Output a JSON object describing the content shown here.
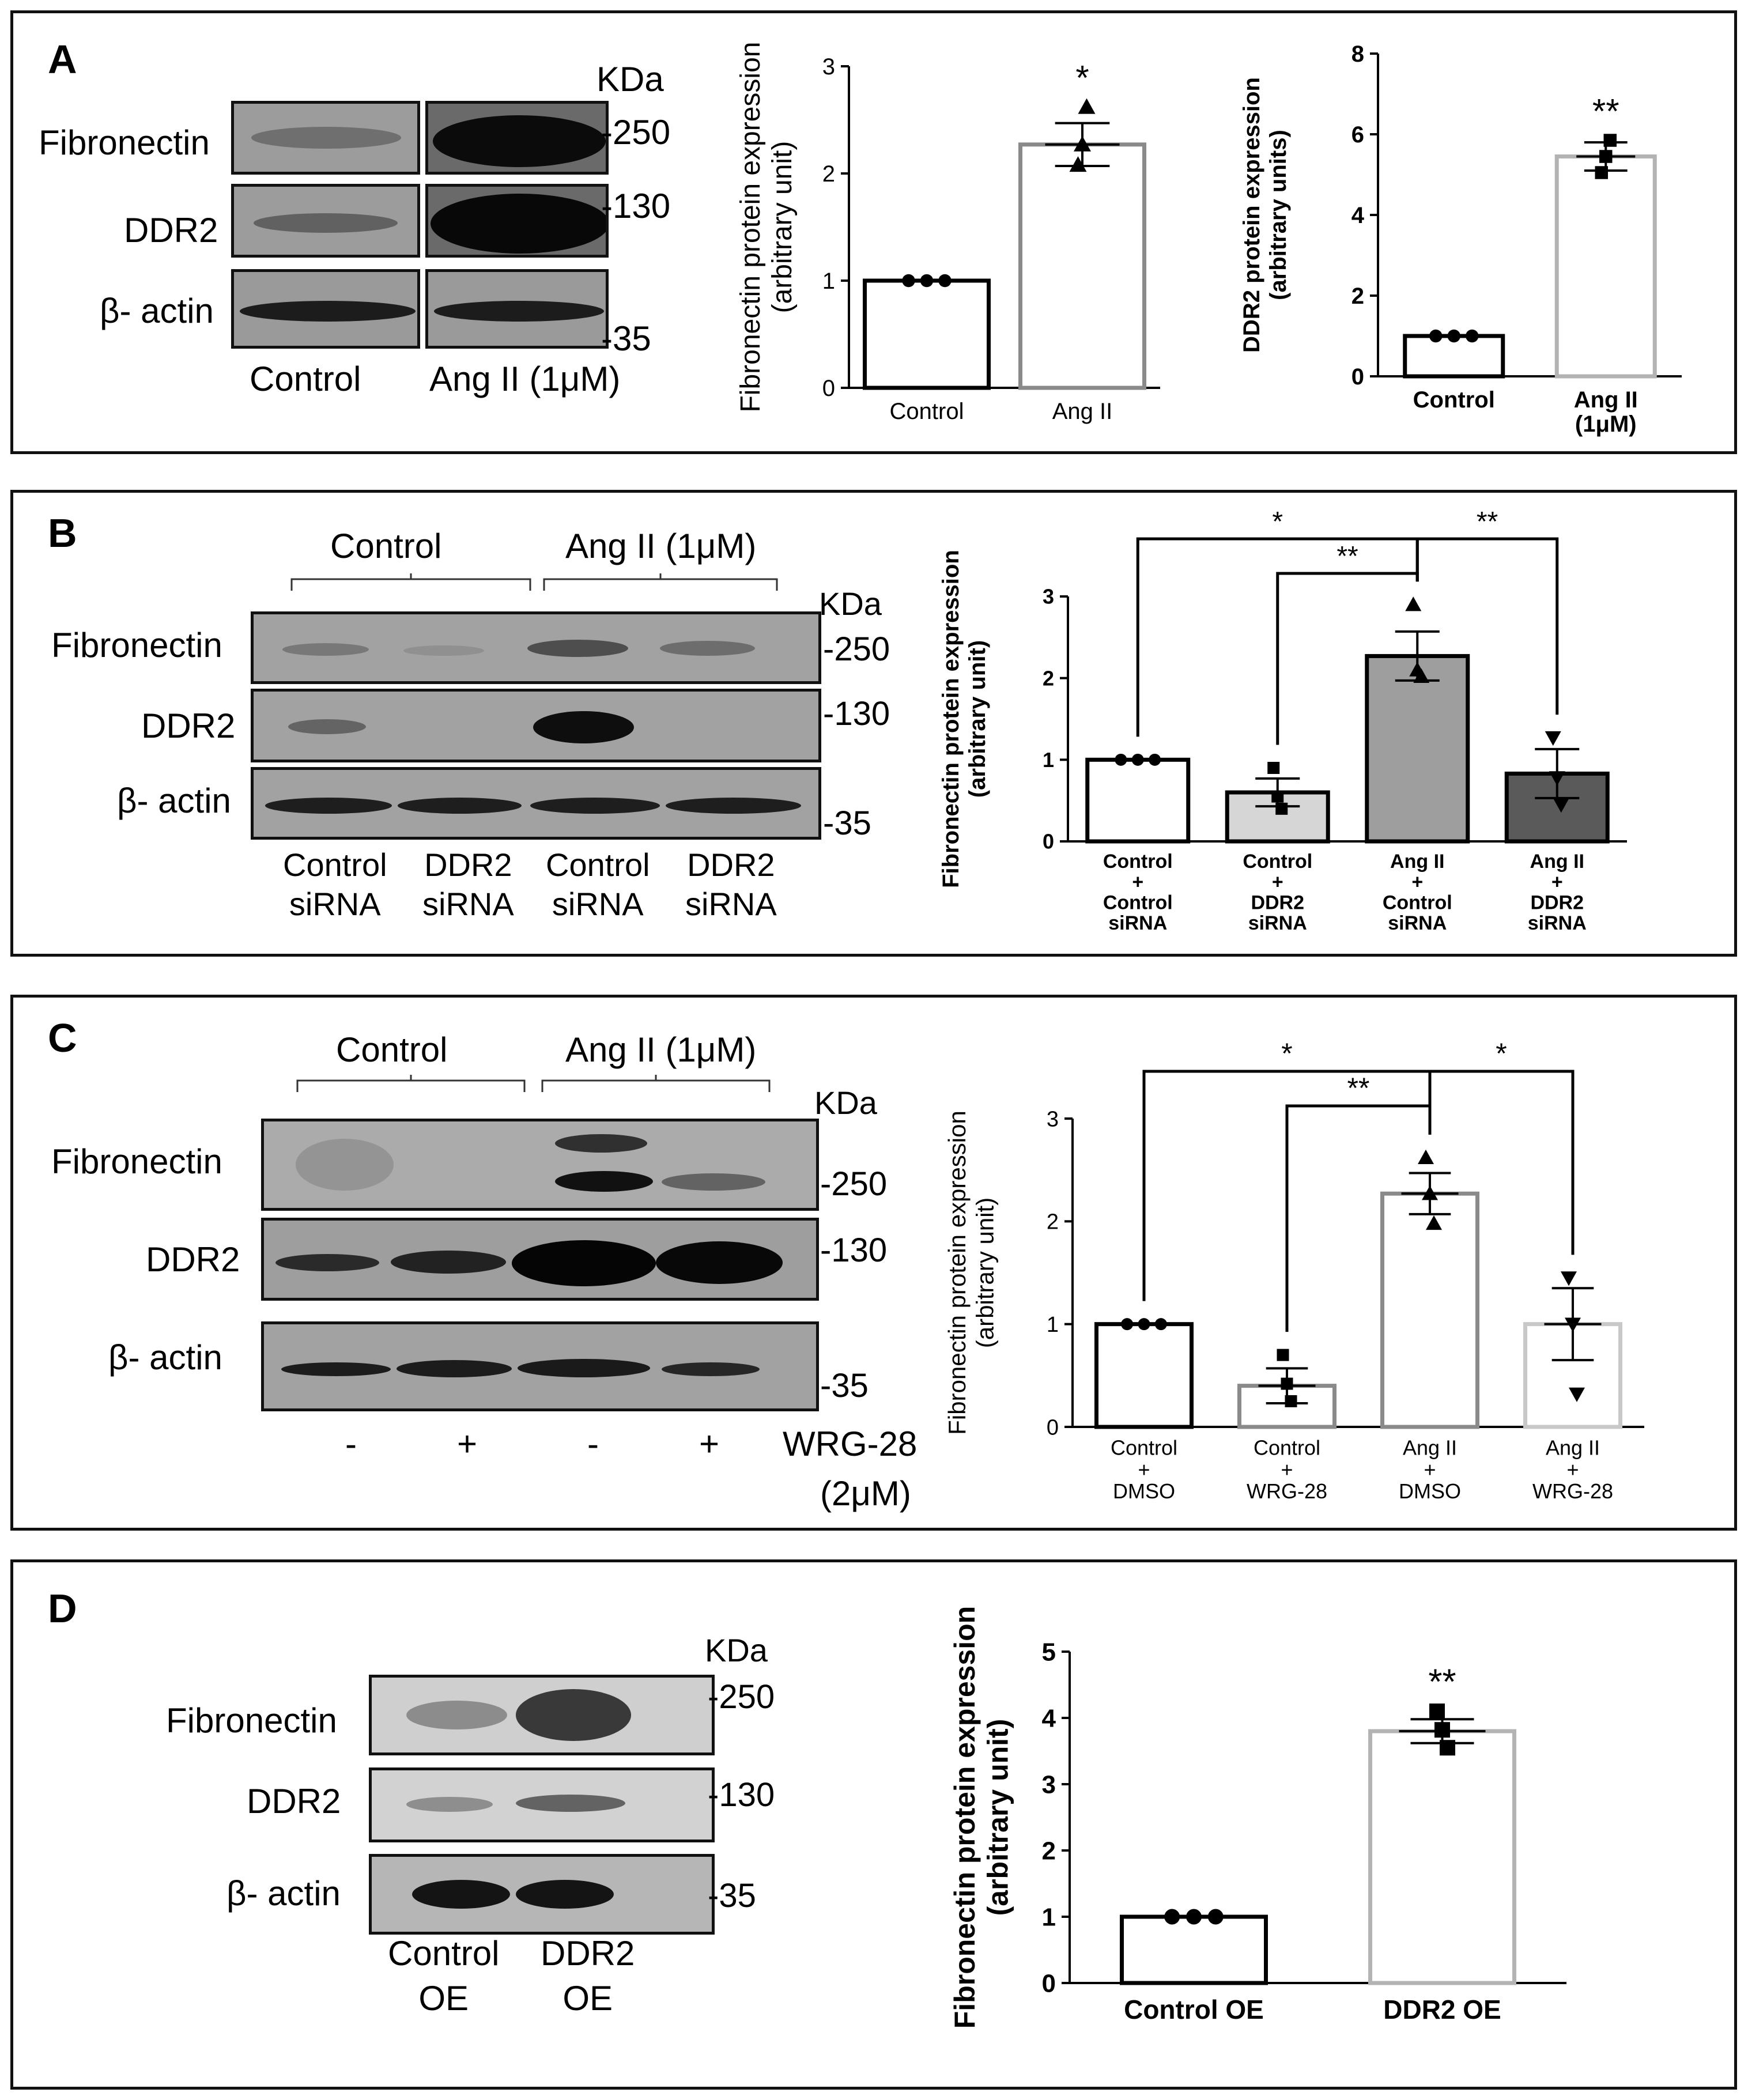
{
  "panels": {
    "A": {
      "label": "A",
      "kda": "KDa",
      "proteins": [
        "Fibronectin",
        "DDR2",
        "β- actin"
      ],
      "markers": [
        "-250",
        "-130",
        "-35"
      ],
      "lanes": [
        "Control",
        "Ang II (1μM)"
      ]
    },
    "B": {
      "label": "B",
      "kda": "KDa",
      "groups": [
        "Control",
        "Ang II (1μM)"
      ],
      "proteins": [
        "Fibronectin",
        "DDR2",
        "β- actin"
      ],
      "markers": [
        "-250",
        "-130",
        "-35"
      ],
      "lanes": [
        [
          "Control",
          "siRNA"
        ],
        [
          "DDR2",
          "siRNA"
        ],
        [
          "Control",
          "siRNA"
        ],
        [
          "DDR2",
          "siRNA"
        ]
      ]
    },
    "C": {
      "label": "C",
      "kda": "KDa",
      "groups": [
        "Control",
        "Ang II (1μM)"
      ],
      "proteins": [
        "Fibronectin",
        "DDR2",
        "β- actin"
      ],
      "markers": [
        "-250",
        "-130",
        "-35"
      ],
      "treatment_signs": [
        "-",
        "+",
        "-",
        "+"
      ],
      "treatment_label": [
        "WRG-28",
        "(2μM)"
      ]
    },
    "D": {
      "label": "D",
      "kda": "KDa",
      "proteins": [
        "Fibronectin",
        "DDR2",
        "β- actin"
      ],
      "markers": [
        "-250",
        "-130",
        "-35"
      ],
      "lanes": [
        [
          "Control",
          "OE"
        ],
        [
          "DDR2",
          "OE"
        ]
      ]
    }
  },
  "chart_data": [
    {
      "id": "A1",
      "type": "bar",
      "ylabel": [
        "Fibronectin protein expression",
        "(arbitrary unit)"
      ],
      "ylim": [
        0,
        3
      ],
      "yticks": [
        0,
        1,
        2,
        3
      ],
      "categories": [
        [
          "Control"
        ],
        [
          "Ang II"
        ]
      ],
      "values": [
        1.0,
        2.27
      ],
      "errors": [
        0,
        0.2
      ],
      "points": [
        [
          1.0,
          1.0,
          1.0
        ],
        [
          2.08,
          2.27,
          2.62
        ]
      ],
      "markers": [
        "circle",
        "triangle"
      ],
      "colors": [
        "#000000",
        "#8a8a8a"
      ],
      "significance": [
        "",
        "*"
      ],
      "bold": false
    },
    {
      "id": "A2",
      "type": "bar",
      "ylabel": [
        "DDR2 protein expression",
        "(arbitrary units)"
      ],
      "ylim": [
        0,
        8
      ],
      "yticks": [
        0,
        2,
        4,
        6,
        8
      ],
      "categories": [
        [
          "Control"
        ],
        [
          "Ang II",
          "(1μM)"
        ]
      ],
      "values": [
        1.0,
        5.45
      ],
      "errors": [
        0,
        0.35
      ],
      "points": [
        [
          1.0,
          1.0,
          1.0
        ],
        [
          5.05,
          5.45,
          5.85
        ]
      ],
      "markers": [
        "circle",
        "square"
      ],
      "colors": [
        "#000000",
        "#b3b3b3"
      ],
      "significance": [
        "",
        "**"
      ],
      "bold": true
    },
    {
      "id": "B",
      "type": "bar",
      "ylabel": [
        "Fibronectin protein expression",
        "(arbitrary unit)"
      ],
      "ylim": [
        0,
        3
      ],
      "yticks": [
        0,
        1,
        2,
        3
      ],
      "categories": [
        [
          "Control",
          "+",
          "Control",
          "siRNA"
        ],
        [
          "Control",
          "+",
          "DDR2",
          "siRNA"
        ],
        [
          "Ang II",
          "+",
          "Control",
          "siRNA"
        ],
        [
          "Ang II",
          "+",
          "DDR2",
          "siRNA"
        ]
      ],
      "values": [
        1.0,
        0.6,
        2.27,
        0.83
      ],
      "errors": [
        0,
        0.17,
        0.3,
        0.3
      ],
      "points": [
        [
          1.0,
          1.0,
          1.0
        ],
        [
          0.9,
          0.55,
          0.4
        ],
        [
          2.9,
          2.1,
          2.02
        ],
        [
          1.27,
          0.78,
          0.45
        ]
      ],
      "markers": [
        "circle",
        "square",
        "triangle",
        "triangle-down"
      ],
      "colors": [
        "#000000",
        "#000000",
        "#000000",
        "#000000"
      ],
      "fills": [
        "#ffffff",
        "#d6d6d6",
        "#9e9e9e",
        "#5a5a5a"
      ],
      "significance": [
        "",
        "",
        "",
        ""
      ],
      "bold": true,
      "brackets": [
        {
          "from": 0,
          "to": 2,
          "label": "*"
        },
        {
          "from": 1,
          "to": 2,
          "label": "**"
        },
        {
          "from": 2,
          "to": 3,
          "label": "**"
        }
      ]
    },
    {
      "id": "C",
      "type": "bar",
      "ylabel": [
        "Fibronectin protein expression",
        "(arbitrary unit)"
      ],
      "ylim": [
        0,
        3
      ],
      "yticks": [
        0,
        1,
        2,
        3
      ],
      "categories": [
        [
          "Control",
          "+",
          "DMSO"
        ],
        [
          "Control",
          "+",
          "WRG-28"
        ],
        [
          "Ang II",
          "+",
          "DMSO"
        ],
        [
          "Ang II",
          "+",
          "WRG-28"
        ]
      ],
      "values": [
        1.0,
        0.4,
        2.27,
        1.0
      ],
      "errors": [
        0,
        0.17,
        0.2,
        0.35
      ],
      "points": [
        [
          1.0,
          1.0,
          1.0
        ],
        [
          0.7,
          0.42,
          0.25
        ],
        [
          2.62,
          2.27,
          1.98
        ],
        [
          1.45,
          1.0,
          0.32
        ]
      ],
      "markers": [
        "circle",
        "square",
        "triangle",
        "triangle-down"
      ],
      "colors": [
        "#000000",
        "#8a8a8a",
        "#8a8a8a",
        "#c8c8c8"
      ],
      "significance": [
        "",
        "",
        "",
        ""
      ],
      "bold": false,
      "brackets": [
        {
          "from": 0,
          "to": 2,
          "label": "*"
        },
        {
          "from": 1,
          "to": 2,
          "label": "**"
        },
        {
          "from": 2,
          "to": 3,
          "label": "*"
        }
      ]
    },
    {
      "id": "D",
      "type": "bar",
      "ylabel": [
        "Fibronectin protein expression",
        "(arbitrary unit)"
      ],
      "ylim": [
        0,
        5
      ],
      "yticks": [
        0,
        1,
        2,
        3,
        4,
        5
      ],
      "categories": [
        [
          "Control OE"
        ],
        [
          "DDR2 OE"
        ]
      ],
      "values": [
        1.0,
        3.8
      ],
      "errors": [
        0,
        0.18
      ],
      "points": [
        [
          1.0,
          1.0,
          1.0
        ],
        [
          4.1,
          3.82,
          3.55
        ]
      ],
      "markers": [
        "circle",
        "square"
      ],
      "colors": [
        "#000000",
        "#b3b3b3"
      ],
      "significance": [
        "",
        "**"
      ],
      "bold": true
    }
  ]
}
